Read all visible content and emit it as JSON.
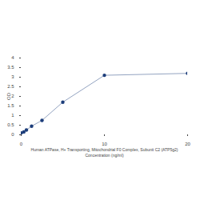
{
  "chart_data": {
    "type": "line",
    "x_label": "Human ATPase, H+ Transporting, Mitochondrial F0 Complex, Subunit C2 (ATP5g2)\nConcentration (ng/ml)",
    "y_label": "OD",
    "x": [
      0,
      0.3125,
      0.625,
      1.25,
      2.5,
      5,
      10,
      20
    ],
    "values": [
      0.1,
      0.15,
      0.25,
      0.45,
      0.75,
      1.7,
      3.1,
      3.2
    ],
    "color": "#1c3d7a",
    "marker": "circle",
    "xlim": [
      0,
      20
    ],
    "xticks": [
      0,
      10,
      20
    ],
    "ylim": [
      0,
      4
    ],
    "yticks": [
      0,
      0.5,
      1,
      1.5,
      2,
      2.5,
      3,
      3.5,
      4
    ],
    "grid": false
  }
}
